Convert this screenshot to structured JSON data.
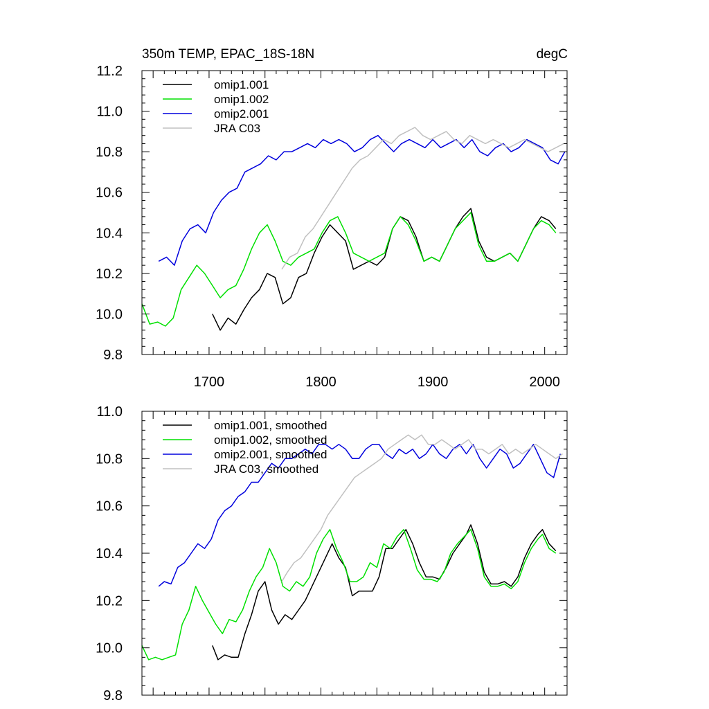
{
  "chart_data": [
    {
      "type": "line",
      "title": "350m TEMP, EPAC_18S-18N",
      "units": "degC",
      "xlim": [
        1640,
        2020
      ],
      "ylim": [
        9.8,
        11.2
      ],
      "y_ticks": [
        9.8,
        10.0,
        10.2,
        10.4,
        10.6,
        10.8,
        11.0,
        11.2
      ],
      "y_tick_labels": [
        "9.8",
        "10.0",
        "10.2",
        "10.4",
        "10.6",
        "10.8",
        "11.0",
        "11.2"
      ],
      "x_ticks": [
        1700,
        1800,
        1900,
        2000
      ],
      "x_tick_labels": [
        "1700",
        "1800",
        "1900",
        "2000"
      ],
      "series": [
        {
          "name": "omip1.001",
          "color": "#000000",
          "x": [
            1703,
            1710,
            1717,
            1724,
            1731,
            1738,
            1745,
            1752,
            1759,
            1766,
            1773,
            1780,
            1787,
            1794,
            1801,
            1808,
            1815,
            1822,
            1829,
            1836,
            1843,
            1850,
            1857,
            1864,
            1871,
            1878,
            1885,
            1892,
            1899,
            1906,
            1913,
            1920,
            1927,
            1934,
            1941,
            1948,
            1955,
            1962,
            1969,
            1976,
            1983,
            1990,
            1997,
            2004,
            2010
          ],
          "values": [
            10.0,
            9.92,
            9.98,
            9.95,
            10.02,
            10.08,
            10.12,
            10.2,
            10.18,
            10.05,
            10.08,
            10.18,
            10.2,
            10.3,
            10.38,
            10.44,
            10.4,
            10.36,
            10.22,
            10.24,
            10.26,
            10.24,
            10.28,
            10.42,
            10.48,
            10.46,
            10.38,
            10.26,
            10.28,
            10.26,
            10.34,
            10.42,
            10.48,
            10.52,
            10.36,
            10.28,
            10.26,
            10.28,
            10.3,
            10.26,
            10.34,
            10.42,
            10.48,
            10.46,
            10.42
          ]
        },
        {
          "name": "omip1.002",
          "color": "#00e000",
          "x": [
            1640,
            1647,
            1654,
            1661,
            1668,
            1675,
            1682,
            1689,
            1696,
            1703,
            1710,
            1717,
            1724,
            1731,
            1738,
            1745,
            1752,
            1759,
            1766,
            1773,
            1780,
            1787,
            1794,
            1801,
            1808,
            1815,
            1822,
            1829,
            1836,
            1843,
            1850,
            1857,
            1864,
            1871,
            1878,
            1885,
            1892,
            1899,
            1906,
            1913,
            1920,
            1927,
            1934,
            1941,
            1948,
            1955,
            1962,
            1969,
            1976,
            1983,
            1990,
            1997,
            2004,
            2010
          ],
          "values": [
            10.05,
            9.95,
            9.96,
            9.94,
            9.98,
            10.12,
            10.18,
            10.24,
            10.2,
            10.14,
            10.08,
            10.12,
            10.14,
            10.22,
            10.32,
            10.4,
            10.44,
            10.36,
            10.26,
            10.24,
            10.28,
            10.3,
            10.32,
            10.4,
            10.46,
            10.48,
            10.4,
            10.3,
            10.28,
            10.26,
            10.28,
            10.3,
            10.42,
            10.48,
            10.44,
            10.36,
            10.26,
            10.28,
            10.26,
            10.34,
            10.42,
            10.46,
            10.5,
            10.34,
            10.26,
            10.26,
            10.28,
            10.3,
            10.26,
            10.34,
            10.42,
            10.46,
            10.44,
            10.4
          ]
        },
        {
          "name": "omip2.001",
          "color": "#0000dd",
          "x": [
            1655,
            1662,
            1669,
            1676,
            1683,
            1690,
            1697,
            1704,
            1711,
            1718,
            1725,
            1732,
            1739,
            1746,
            1753,
            1760,
            1767,
            1774,
            1781,
            1788,
            1795,
            1802,
            1809,
            1816,
            1823,
            1830,
            1837,
            1844,
            1851,
            1858,
            1865,
            1872,
            1879,
            1886,
            1893,
            1900,
            1907,
            1914,
            1921,
            1928,
            1935,
            1942,
            1949,
            1956,
            1963,
            1970,
            1977,
            1984,
            1991,
            1998,
            2005,
            2012,
            2018
          ],
          "values": [
            10.26,
            10.28,
            10.24,
            10.36,
            10.42,
            10.44,
            10.4,
            10.5,
            10.56,
            10.6,
            10.62,
            10.7,
            10.72,
            10.74,
            10.78,
            10.76,
            10.8,
            10.8,
            10.82,
            10.84,
            10.82,
            10.86,
            10.84,
            10.86,
            10.84,
            10.8,
            10.82,
            10.86,
            10.88,
            10.84,
            10.8,
            10.84,
            10.86,
            10.84,
            10.82,
            10.86,
            10.82,
            10.84,
            10.86,
            10.82,
            10.86,
            10.8,
            10.78,
            10.82,
            10.84,
            10.8,
            10.82,
            10.86,
            10.84,
            10.82,
            10.76,
            10.74,
            10.8
          ]
        },
        {
          "name": "JRA C03",
          "color": "#c0c0c0",
          "x": [
            1765,
            1772,
            1779,
            1786,
            1793,
            1800,
            1807,
            1814,
            1821,
            1828,
            1835,
            1842,
            1849,
            1856,
            1863,
            1870,
            1877,
            1884,
            1891,
            1898,
            1905,
            1912,
            1919,
            1926,
            1933,
            1940,
            1947,
            1954,
            1961,
            1968,
            1975,
            1982,
            1989,
            1996,
            2003,
            2010,
            2017
          ],
          "values": [
            10.22,
            10.28,
            10.3,
            10.38,
            10.42,
            10.48,
            10.54,
            10.6,
            10.66,
            10.72,
            10.76,
            10.78,
            10.82,
            10.86,
            10.84,
            10.88,
            10.9,
            10.92,
            10.88,
            10.86,
            10.88,
            10.9,
            10.86,
            10.84,
            10.88,
            10.86,
            10.84,
            10.86,
            10.84,
            10.82,
            10.84,
            10.86,
            10.84,
            10.82,
            10.8,
            10.82,
            10.84
          ]
        }
      ]
    },
    {
      "type": "line",
      "xlim": [
        1640,
        2020
      ],
      "ylim": [
        9.8,
        11.0
      ],
      "y_ticks": [
        9.8,
        10.0,
        10.2,
        10.4,
        10.6,
        10.8,
        11.0
      ],
      "y_tick_labels": [
        "9.8",
        "10.0",
        "10.2",
        "10.4",
        "10.6",
        "10.8",
        "11.0"
      ],
      "series": [
        {
          "name": "omip1.001, smoothed",
          "color": "#000000",
          "x": [
            1703,
            1708,
            1714,
            1720,
            1726,
            1732,
            1738,
            1744,
            1750,
            1756,
            1762,
            1768,
            1774,
            1780,
            1786,
            1792,
            1798,
            1804,
            1810,
            1816,
            1822,
            1828,
            1834,
            1840,
            1846,
            1852,
            1858,
            1864,
            1870,
            1876,
            1882,
            1888,
            1894,
            1900,
            1906,
            1912,
            1918,
            1924,
            1930,
            1934,
            1940,
            1946,
            1952,
            1958,
            1964,
            1970,
            1976,
            1982,
            1988,
            1994,
            1998,
            2004,
            2010
          ],
          "values": [
            10.01,
            9.95,
            9.97,
            9.96,
            9.96,
            10.06,
            10.14,
            10.24,
            10.28,
            10.16,
            10.1,
            10.14,
            10.12,
            10.16,
            10.2,
            10.26,
            10.32,
            10.38,
            10.44,
            10.38,
            10.34,
            10.22,
            10.24,
            10.24,
            10.24,
            10.3,
            10.42,
            10.42,
            10.46,
            10.5,
            10.44,
            10.36,
            10.3,
            10.3,
            10.29,
            10.34,
            10.4,
            10.44,
            10.48,
            10.52,
            10.44,
            10.32,
            10.27,
            10.27,
            10.28,
            10.26,
            10.3,
            10.38,
            10.44,
            10.48,
            10.5,
            10.44,
            10.41
          ]
        },
        {
          "name": "omip1.002, smoothed",
          "color": "#00e000",
          "x": [
            1640,
            1646,
            1652,
            1658,
            1664,
            1670,
            1676,
            1682,
            1688,
            1694,
            1700,
            1706,
            1712,
            1718,
            1724,
            1730,
            1736,
            1742,
            1748,
            1754,
            1760,
            1766,
            1772,
            1778,
            1784,
            1790,
            1796,
            1802,
            1808,
            1814,
            1820,
            1826,
            1832,
            1838,
            1844,
            1850,
            1856,
            1862,
            1868,
            1874,
            1880,
            1886,
            1892,
            1898,
            1904,
            1910,
            1916,
            1922,
            1928,
            1934,
            1940,
            1946,
            1952,
            1958,
            1964,
            1970,
            1976,
            1982,
            1988,
            1994,
            1998,
            2004,
            2010
          ],
          "values": [
            10.01,
            9.95,
            9.96,
            9.95,
            9.96,
            9.97,
            10.1,
            10.16,
            10.26,
            10.2,
            10.15,
            10.1,
            10.06,
            10.12,
            10.11,
            10.16,
            10.24,
            10.3,
            10.34,
            10.42,
            10.36,
            10.26,
            10.24,
            10.28,
            10.26,
            10.3,
            10.4,
            10.46,
            10.5,
            10.42,
            10.36,
            10.28,
            10.28,
            10.3,
            10.36,
            10.34,
            10.44,
            10.42,
            10.47,
            10.5,
            10.42,
            10.33,
            10.29,
            10.29,
            10.28,
            10.32,
            10.4,
            10.44,
            10.47,
            10.5,
            10.42,
            10.3,
            10.26,
            10.26,
            10.27,
            10.25,
            10.28,
            10.36,
            10.42,
            10.46,
            10.48,
            10.42,
            10.4
          ]
        },
        {
          "name": "omip2.001, smoothed",
          "color": "#0000dd",
          "x": [
            1655,
            1660,
            1666,
            1672,
            1678,
            1684,
            1690,
            1696,
            1702,
            1708,
            1714,
            1720,
            1726,
            1732,
            1738,
            1744,
            1750,
            1756,
            1762,
            1768,
            1774,
            1780,
            1786,
            1792,
            1798,
            1804,
            1810,
            1816,
            1822,
            1828,
            1834,
            1840,
            1846,
            1852,
            1858,
            1864,
            1870,
            1876,
            1882,
            1888,
            1894,
            1900,
            1906,
            1912,
            1918,
            1924,
            1930,
            1936,
            1942,
            1948,
            1954,
            1960,
            1966,
            1972,
            1978,
            1984,
            1990,
            1996,
            2002,
            2008,
            2014
          ],
          "values": [
            10.26,
            10.28,
            10.27,
            10.34,
            10.36,
            10.4,
            10.44,
            10.42,
            10.46,
            10.54,
            10.58,
            10.6,
            10.64,
            10.66,
            10.7,
            10.7,
            10.74,
            10.78,
            10.76,
            10.8,
            10.8,
            10.82,
            10.84,
            10.82,
            10.86,
            10.86,
            10.84,
            10.86,
            10.84,
            10.8,
            10.8,
            10.84,
            10.86,
            10.86,
            10.82,
            10.8,
            10.84,
            10.82,
            10.84,
            10.8,
            10.82,
            10.86,
            10.82,
            10.8,
            10.84,
            10.86,
            10.82,
            10.86,
            10.8,
            10.76,
            10.8,
            10.84,
            10.82,
            10.76,
            10.78,
            10.82,
            10.86,
            10.8,
            10.74,
            10.72,
            10.82
          ]
        },
        {
          "name": "JRA C03, smoothed",
          "color": "#c0c0c0",
          "x": [
            1765,
            1770,
            1776,
            1782,
            1788,
            1794,
            1800,
            1806,
            1812,
            1818,
            1824,
            1830,
            1836,
            1842,
            1848,
            1854,
            1860,
            1866,
            1872,
            1878,
            1884,
            1890,
            1896,
            1902,
            1908,
            1914,
            1920,
            1926,
            1932,
            1938,
            1944,
            1950,
            1956,
            1962,
            1968,
            1974,
            1980,
            1986,
            1992,
            1998,
            2004,
            2010,
            2016
          ],
          "values": [
            10.28,
            10.32,
            10.36,
            10.38,
            10.42,
            10.46,
            10.5,
            10.56,
            10.6,
            10.64,
            10.68,
            10.72,
            10.74,
            10.76,
            10.78,
            10.8,
            10.84,
            10.86,
            10.88,
            10.9,
            10.88,
            10.9,
            10.86,
            10.86,
            10.88,
            10.86,
            10.84,
            10.86,
            10.88,
            10.84,
            10.84,
            10.82,
            10.84,
            10.86,
            10.82,
            10.84,
            10.82,
            10.84,
            10.86,
            10.84,
            10.82,
            10.8,
            10.82
          ]
        }
      ]
    }
  ]
}
